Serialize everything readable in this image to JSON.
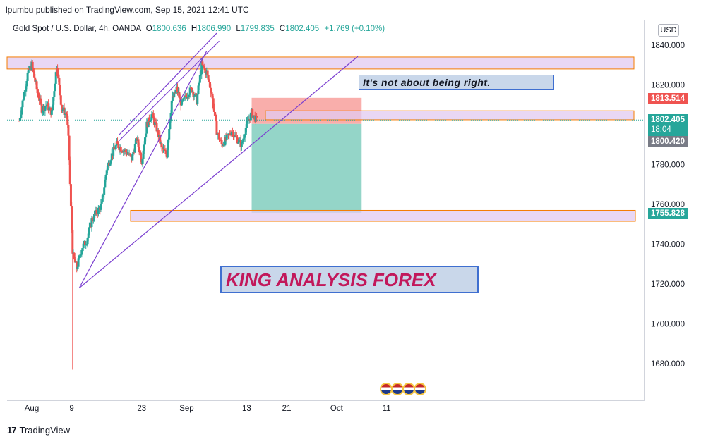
{
  "header": {
    "published": "lpumbu published on TradingView.com, Sep 15, 2021 12:41 UTC"
  },
  "legend": {
    "symbol": "Gold Spot / U.S. Dollar, 4h, OANDA",
    "o_label": "O",
    "o": "1800.636",
    "h_label": "H",
    "h": "1806.990",
    "l_label": "L",
    "l": "1799.835",
    "c_label": "C",
    "c": "1802.405",
    "change": "+1.769 (+0.10%)"
  },
  "currency_button": "USD",
  "annotations": {
    "note_small": "It's not about being right.",
    "note_large": "KING ANALYSIS FOREX"
  },
  "price_tags": {
    "target": "1813.514",
    "current": "1802.405",
    "countdown": "18:04",
    "entry": "1800.420",
    "stop": "1755.828"
  },
  "colors": {
    "up": "#26a69a",
    "down": "#ef5350",
    "zone_fill": "#e1c9f0",
    "zone_border": "#f57c00",
    "channel": "#7b3fd0",
    "profit": "#8ed3c5",
    "loss": "#f8a5a2"
  },
  "footer": {
    "brand": "TradingView"
  },
  "chart_data": {
    "type": "candlestick",
    "title": "Gold Spot / U.S. Dollar, 4h, OANDA",
    "ylim": [
      1670,
      1848
    ],
    "y_ticks": [
      "1840.000",
      "1820.000",
      "1800.000",
      "1780.000",
      "1760.000",
      "1740.000",
      "1720.000",
      "1700.000",
      "1680.000"
    ],
    "x_ticks": [
      {
        "label": "Aug",
        "day": 0
      },
      {
        "label": "9",
        "day": 8
      },
      {
        "label": "23",
        "day": 22
      },
      {
        "label": "Sep",
        "day": 31
      },
      {
        "label": "13",
        "day": 43
      },
      {
        "label": "21",
        "day": 51
      },
      {
        "label": "Oct",
        "day": 61
      },
      {
        "label": "11",
        "day": 71
      }
    ],
    "path": [
      [
        -2.5,
        1802
      ],
      [
        -1.8,
        1812
      ],
      [
        -0.8,
        1826
      ],
      [
        0,
        1830
      ],
      [
        1,
        1818
      ],
      [
        2,
        1808
      ],
      [
        3,
        1810
      ],
      [
        4,
        1806
      ],
      [
        5,
        1830
      ],
      [
        6,
        1808
      ],
      [
        7,
        1805
      ],
      [
        7.4,
        1790
      ],
      [
        7.8,
        1760
      ],
      [
        8.2,
        1735
      ],
      [
        8.5,
        1732
      ],
      [
        9,
        1728
      ],
      [
        10,
        1738
      ],
      [
        11,
        1742
      ],
      [
        12,
        1752
      ],
      [
        13,
        1756
      ],
      [
        14,
        1760
      ],
      [
        15,
        1778
      ],
      [
        16,
        1785
      ],
      [
        17,
        1790
      ],
      [
        18,
        1788
      ],
      [
        19,
        1786
      ],
      [
        20,
        1783
      ],
      [
        21,
        1793
      ],
      [
        22,
        1782
      ],
      [
        23,
        1800
      ],
      [
        24,
        1805
      ],
      [
        25,
        1798
      ],
      [
        26,
        1788
      ],
      [
        27,
        1785
      ],
      [
        28,
        1812
      ],
      [
        29,
        1818
      ],
      [
        30,
        1810
      ],
      [
        31,
        1815
      ],
      [
        32,
        1818
      ],
      [
        33,
        1812
      ],
      [
        34,
        1830
      ],
      [
        35,
        1826
      ],
      [
        36,
        1816
      ],
      [
        37,
        1797
      ],
      [
        38,
        1790
      ],
      [
        39,
        1793
      ],
      [
        40,
        1797
      ],
      [
        41,
        1793
      ],
      [
        42,
        1790
      ],
      [
        43,
        1800
      ],
      [
        44,
        1806
      ],
      [
        45,
        1802
      ]
    ],
    "zones": [
      {
        "from": 1828,
        "to": 1834
      },
      {
        "from": 1802.5,
        "to": 1807
      },
      {
        "from": 1751.5,
        "to": 1757
      }
    ],
    "trendlines": [
      {
        "points": [
          [
            9.5,
            1718
          ],
          [
            35,
            1837
          ]
        ]
      },
      {
        "points": [
          [
            17.5,
            1795
          ],
          [
            37,
            1846
          ]
        ]
      },
      {
        "points": [
          [
            17.5,
            1792
          ],
          [
            37.5,
            1842
          ]
        ]
      }
    ],
    "position": {
      "entry": 1800.42,
      "target_zone": [
        1800.42,
        1813.514
      ],
      "stop": 1755.828,
      "from_day": 44,
      "to_day": 66
    },
    "xlabel": "",
    "ylabel": ""
  }
}
